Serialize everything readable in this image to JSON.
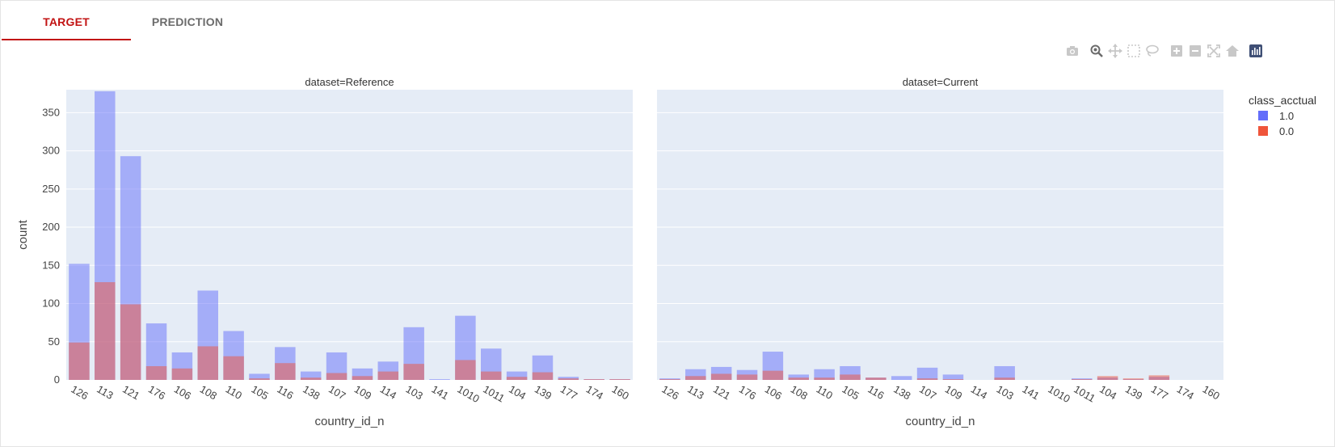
{
  "tabs": [
    {
      "label": "TARGET",
      "active": true
    },
    {
      "label": "PREDICTION",
      "active": false
    }
  ],
  "modebar": {
    "icons": [
      "camera-icon",
      "zoom-icon",
      "pan-icon",
      "box-select-icon",
      "lasso-icon",
      "zoom-in-icon",
      "zoom-out-icon",
      "autoscale-icon",
      "home-icon",
      "plotly-logo-icon"
    ]
  },
  "chart_data": {
    "type": "bar",
    "barmode": "overlay",
    "xlabel": "country_id_n",
    "ylabel": "count",
    "ylim": [
      0,
      380
    ],
    "yticks": [
      0,
      50,
      100,
      150,
      200,
      250,
      300,
      350
    ],
    "categories": [
      "126",
      "113",
      "121",
      "176",
      "106",
      "108",
      "110",
      "105",
      "116",
      "138",
      "107",
      "109",
      "114",
      "103",
      "141",
      "1010",
      "1011",
      "104",
      "139",
      "177",
      "174",
      "160"
    ],
    "legend": {
      "title": "class_acctual",
      "placement": "top-right",
      "items": [
        {
          "label": "1.0",
          "color": "#636efa"
        },
        {
          "label": "0.0",
          "color": "#ef553b"
        }
      ]
    },
    "facets": [
      {
        "title": "dataset=Reference",
        "series": [
          {
            "name": "1.0",
            "color": "#636efa",
            "values": [
              152,
              378,
              293,
              74,
              36,
              117,
              64,
              8,
              43,
              11,
              36,
              15,
              24,
              69,
              1,
              84,
              41,
              11,
              32,
              4,
              1,
              1
            ]
          },
          {
            "name": "0.0",
            "color": "#ef553b",
            "values": [
              49,
              128,
              99,
              18,
              15,
              44,
              31,
              2,
              22,
              3,
              9,
              5,
              11,
              21,
              0,
              26,
              11,
              4,
              10,
              2,
              1,
              1
            ]
          }
        ]
      },
      {
        "title": "dataset=Current",
        "series": [
          {
            "name": "1.0",
            "color": "#636efa",
            "values": [
              2,
              14,
              17,
              13,
              37,
              7,
              14,
              18,
              3,
              5,
              16,
              7,
              0,
              18,
              0,
              0,
              2,
              3,
              1,
              4,
              0,
              0
            ]
          },
          {
            "name": "0.0",
            "color": "#ef553b",
            "values": [
              1,
              5,
              8,
              7,
              12,
              3,
              3,
              7,
              3,
              0,
              2,
              1,
              0,
              3,
              0,
              0,
              1,
              5,
              2,
              6,
              0,
              0
            ]
          }
        ]
      }
    ]
  }
}
